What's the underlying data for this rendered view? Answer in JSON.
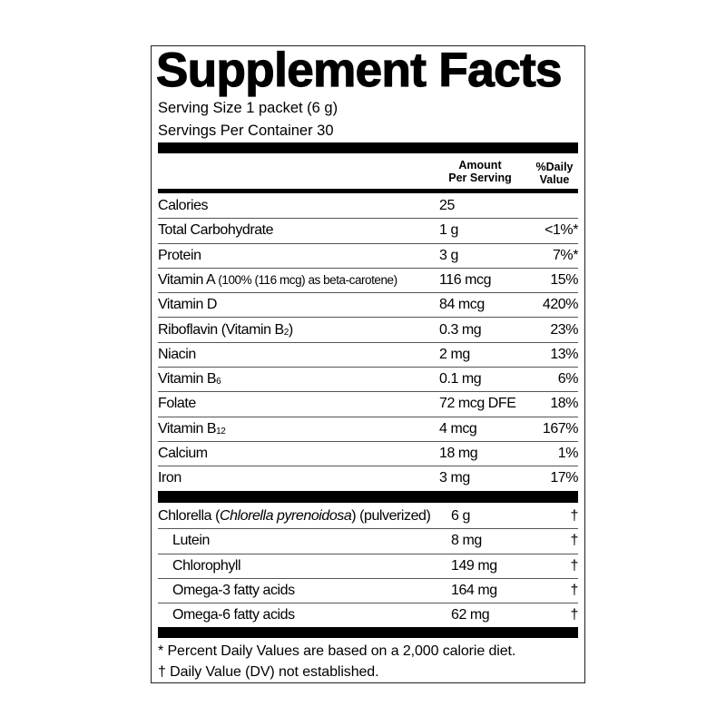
{
  "title": "Supplement Facts",
  "serving_size": "Serving Size 1 packet (6 g)",
  "servings_per_container": "Servings Per Container 30",
  "headers": {
    "amount_line1": "Amount",
    "amount_line2": "Per Serving",
    "dv_line1": "%Daily",
    "dv_line2": "Value"
  },
  "nutrients": [
    {
      "name": "Calories",
      "amount": "25",
      "dv": ""
    },
    {
      "name": "Total Carbohydrate",
      "amount": "1 g",
      "dv": "<1%*"
    },
    {
      "name": "Protein",
      "amount": "3 g",
      "dv": "7%*"
    },
    {
      "name": "Vitamin A",
      "note": "(100% (116 mcg) as beta-carotene)",
      "amount": "116 mcg",
      "dv": "15%"
    },
    {
      "name": "Vitamin D",
      "amount": "84 mcg",
      "dv": "420%"
    },
    {
      "name": "Riboflavin (Vitamin B",
      "sub": "2",
      "suffix": ")",
      "amount": "0.3 mg",
      "dv": "23%"
    },
    {
      "name": "Niacin",
      "amount": "2 mg",
      "dv": "13%"
    },
    {
      "name": "Vitamin B",
      "sub": "6",
      "amount": "0.1 mg",
      "dv": "6%"
    },
    {
      "name": "Folate",
      "amount": "72 mcg DFE",
      "dv": "18%"
    },
    {
      "name": "Vitamin B",
      "sub": "12",
      "amount": "4 mcg",
      "dv": "167%"
    },
    {
      "name": "Calcium",
      "amount": "18 mg",
      "dv": "1%"
    },
    {
      "name": "Iron",
      "amount": "3 mg",
      "dv": "17%"
    }
  ],
  "blend": {
    "name_start": "Chlorella (",
    "name_italic": "Chlorella pyrenoidosa",
    "name_end": ") (pulverized)",
    "amount": "6 g",
    "dv": "†",
    "components": [
      {
        "name": "Lutein",
        "amount": "8 mg",
        "dv": "†"
      },
      {
        "name": "Chlorophyll",
        "amount": "149 mg",
        "dv": "†"
      },
      {
        "name": "Omega-3 fatty acids",
        "amount": "164 mg",
        "dv": "†"
      },
      {
        "name": "Omega-6 fatty acids",
        "amount": "62 mg",
        "dv": "†"
      }
    ]
  },
  "footnotes": [
    "* Percent Daily Values are based on a 2,000 calorie diet.",
    "† Daily Value (DV) not established."
  ]
}
